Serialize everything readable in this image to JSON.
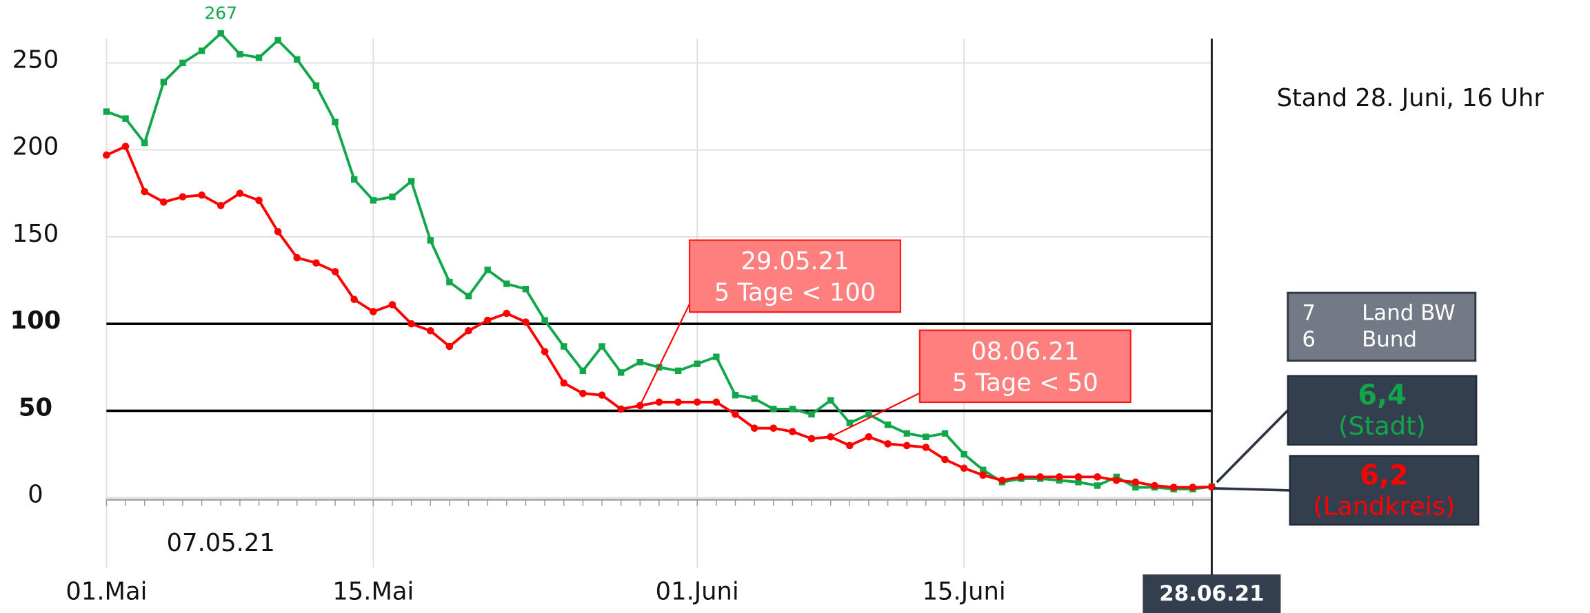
{
  "chart_data": {
    "type": "line",
    "categories": [
      "01.Mai",
      null,
      null,
      null,
      null,
      null,
      null,
      null,
      null,
      null,
      null,
      null,
      null,
      null,
      "15.Mai",
      null,
      null,
      null,
      null,
      null,
      null,
      null,
      null,
      null,
      null,
      null,
      null,
      null,
      null,
      null,
      null,
      "01.Juni",
      null,
      null,
      null,
      null,
      null,
      null,
      null,
      null,
      null,
      null,
      null,
      null,
      null,
      "15.Juni",
      null,
      null,
      null,
      null,
      null,
      null,
      null,
      null,
      null,
      null,
      null,
      null,
      "28.06.21"
    ],
    "series": [
      {
        "name": "(Stadt)",
        "color": "#12a64a",
        "marker": "square",
        "values": [
          222,
          218,
          204,
          239,
          250,
          257,
          267,
          255,
          253,
          263,
          252,
          237,
          216,
          183,
          171,
          173,
          182,
          148,
          124,
          116,
          131,
          123,
          120,
          102,
          87,
          73,
          87,
          72,
          78,
          75,
          73,
          77,
          81,
          59,
          57,
          51,
          51,
          48,
          56,
          43,
          48,
          42,
          37,
          35,
          37,
          25,
          16,
          9,
          11,
          11,
          10,
          9,
          7,
          12,
          6,
          6,
          5,
          5,
          6.4
        ],
        "value_labels": [
          null,
          null,
          null,
          null,
          null,
          null,
          null,
          null,
          null,
          null,
          null,
          null,
          null,
          null,
          null,
          null,
          null,
          null,
          null,
          null,
          null,
          null,
          null,
          null,
          null,
          null,
          null,
          null,
          null,
          null,
          null,
          null,
          null,
          null,
          null,
          null,
          null,
          null,
          null,
          null,
          null,
          null,
          null,
          null,
          null,
          null,
          null,
          null,
          null,
          null,
          null,
          null,
          null,
          null,
          null,
          null,
          null,
          null,
          "6,4"
        ]
      },
      {
        "name": "(Landkreis)",
        "color": "#ff0000",
        "marker": "circle",
        "values": [
          197,
          202,
          176,
          170,
          173,
          174,
          168,
          175,
          171,
          153,
          138,
          135,
          130,
          114,
          107,
          111,
          100,
          96,
          87,
          96,
          102,
          106,
          101,
          84,
          66,
          60,
          59,
          51,
          53,
          55,
          55,
          55,
          55,
          48,
          40,
          40,
          38,
          34,
          35,
          30,
          35,
          31,
          30,
          29,
          22,
          17,
          13,
          10,
          12,
          12,
          12,
          12,
          12,
          10,
          9,
          7,
          6,
          6,
          6.2
        ],
        "value_labels": [
          null,
          null,
          null,
          null,
          null,
          null,
          null,
          null,
          null,
          null,
          null,
          null,
          null,
          null,
          null,
          null,
          null,
          null,
          null,
          null,
          null,
          null,
          null,
          null,
          null,
          null,
          null,
          null,
          null,
          null,
          null,
          null,
          null,
          null,
          null,
          null,
          null,
          null,
          null,
          null,
          null,
          null,
          null,
          null,
          null,
          null,
          null,
          null,
          null,
          null,
          null,
          null,
          null,
          null,
          null,
          null,
          null,
          null,
          "6,2"
        ]
      }
    ],
    "ylim": [
      -40,
      264
    ],
    "yticks": [
      0,
      50,
      100,
      150,
      200,
      250
    ],
    "reference_lines": [
      50,
      100
    ],
    "grid": true,
    "annotations": [
      {
        "label": "07.05.21"
      },
      {
        "lines": [
          "29.05.21",
          "5 Tage < 100"
        ]
      },
      {
        "lines": [
          "08.06.21",
          "5 Tage < 50"
        ]
      }
    ],
    "status": "Stand 28. Juni, 16 Uhr",
    "other_regions": [
      {
        "value": 7,
        "name": "Land BW"
      },
      {
        "value": 6,
        "name": "Bund"
      }
    ]
  }
}
